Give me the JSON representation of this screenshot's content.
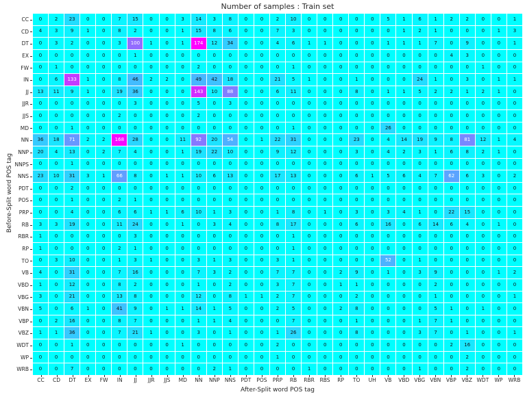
{
  "title": "Number of samples : Train set",
  "colors": {
    "cmap_low": "#00ffff",
    "cmap_high": "#ff00ff",
    "annot_dark": "#111111",
    "annot_light": "#ffffff",
    "background": "#ffffff",
    "tick_text": "#262626"
  },
  "chart_data": {
    "type": "heatmap",
    "title": "Number of samples : Train set",
    "xlabel": "After-Split word POS tag",
    "ylabel": "Before-Split word POS tag",
    "colormap": "cool",
    "vmin": 0,
    "vmax": 174,
    "grid": false,
    "legend": "none",
    "x_categories": [
      "CC",
      "CD",
      "DT",
      "EX",
      "FW",
      "IN",
      "JJ",
      "JJR",
      "JJS",
      "MD",
      "NN",
      "NNP",
      "NNS",
      "PDT",
      "POS",
      "PRP",
      "RB",
      "RBR",
      "RBS",
      "RP",
      "TO",
      "UH",
      "VB",
      "VBD",
      "VBG",
      "VBN",
      "VBP",
      "VBZ",
      "WDT",
      "WP",
      "WRB"
    ],
    "y_categories": [
      "CC",
      "CD",
      "DT",
      "EX",
      "FW",
      "IN",
      "JJ",
      "JJR",
      "JJS",
      "MD",
      "NN",
      "NNP",
      "NNPS",
      "NNS",
      "PDT",
      "POS",
      "PRP",
      "RB",
      "RBR",
      "RP",
      "TO",
      "VB",
      "VBD",
      "VBG",
      "VBN",
      "VBP",
      "VBZ",
      "WDT",
      "WP",
      "WRB"
    ],
    "values": [
      [
        0,
        2,
        23,
        0,
        0,
        7,
        15,
        0,
        0,
        3,
        14,
        3,
        8,
        0,
        0,
        2,
        10,
        0,
        0,
        0,
        0,
        0,
        5,
        1,
        6,
        1,
        2,
        2,
        0,
        0,
        1
      ],
      [
        4,
        3,
        9,
        1,
        0,
        8,
        2,
        0,
        0,
        1,
        15,
        8,
        6,
        0,
        0,
        7,
        3,
        0,
        0,
        0,
        0,
        0,
        0,
        1,
        2,
        1,
        0,
        0,
        0,
        1,
        3
      ],
      [
        0,
        3,
        2,
        0,
        0,
        3,
        100,
        1,
        0,
        1,
        174,
        12,
        34,
        0,
        0,
        4,
        6,
        1,
        1,
        0,
        0,
        0,
        1,
        1,
        1,
        7,
        0,
        9,
        0,
        0,
        1
      ],
      [
        0,
        0,
        0,
        0,
        0,
        0,
        1,
        0,
        0,
        0,
        0,
        0,
        0,
        0,
        0,
        0,
        0,
        0,
        0,
        0,
        0,
        0,
        0,
        0,
        0,
        0,
        4,
        3,
        0,
        0,
        0
      ],
      [
        0,
        1,
        0,
        0,
        0,
        0,
        0,
        0,
        0,
        0,
        2,
        0,
        0,
        0,
        0,
        0,
        1,
        0,
        0,
        0,
        0,
        0,
        0,
        0,
        0,
        0,
        0,
        0,
        1,
        0,
        0
      ],
      [
        0,
        6,
        133,
        1,
        0,
        8,
        46,
        2,
        2,
        0,
        49,
        42,
        18,
        0,
        0,
        21,
        5,
        1,
        0,
        0,
        1,
        0,
        0,
        0,
        24,
        1,
        0,
        3,
        0,
        1,
        1
      ],
      [
        13,
        11,
        9,
        1,
        0,
        19,
        36,
        0,
        0,
        0,
        143,
        10,
        88,
        0,
        0,
        6,
        11,
        0,
        0,
        0,
        8,
        0,
        1,
        1,
        5,
        2,
        2,
        1,
        2,
        1,
        0
      ],
      [
        0,
        0,
        0,
        0,
        0,
        0,
        3,
        0,
        0,
        0,
        5,
        0,
        3,
        0,
        0,
        0,
        0,
        0,
        0,
        0,
        0,
        0,
        0,
        0,
        0,
        0,
        0,
        0,
        0,
        0,
        0
      ],
      [
        0,
        0,
        0,
        0,
        0,
        2,
        0,
        0,
        0,
        0,
        2,
        0,
        0,
        0,
        0,
        0,
        0,
        0,
        0,
        0,
        0,
        0,
        0,
        0,
        0,
        0,
        0,
        0,
        0,
        0,
        0
      ],
      [
        0,
        0,
        1,
        0,
        0,
        0,
        0,
        0,
        0,
        0,
        0,
        0,
        0,
        0,
        0,
        0,
        1,
        0,
        0,
        0,
        0,
        0,
        26,
        0,
        0,
        0,
        0,
        0,
        0,
        0,
        0
      ],
      [
        36,
        18,
        71,
        2,
        2,
        168,
        28,
        0,
        0,
        11,
        92,
        20,
        54,
        0,
        1,
        22,
        31,
        0,
        0,
        0,
        23,
        0,
        4,
        14,
        19,
        9,
        8,
        81,
        12,
        1,
        4
      ],
      [
        20,
        4,
        13,
        0,
        2,
        7,
        4,
        0,
        0,
        1,
        19,
        22,
        10,
        0,
        0,
        9,
        12,
        0,
        0,
        0,
        3,
        0,
        4,
        2,
        3,
        1,
        6,
        8,
        2,
        1,
        0
      ],
      [
        0,
        0,
        1,
        0,
        0,
        0,
        0,
        0,
        0,
        0,
        0,
        0,
        0,
        0,
        0,
        0,
        0,
        0,
        0,
        0,
        0,
        0,
        0,
        0,
        0,
        0,
        0,
        0,
        0,
        0,
        0
      ],
      [
        23,
        10,
        31,
        3,
        1,
        66,
        8,
        0,
        1,
        1,
        10,
        6,
        13,
        0,
        0,
        17,
        13,
        0,
        0,
        0,
        6,
        1,
        5,
        6,
        4,
        7,
        62,
        6,
        3,
        0,
        2
      ],
      [
        0,
        0,
        2,
        0,
        0,
        0,
        0,
        0,
        0,
        0,
        0,
        0,
        0,
        0,
        0,
        0,
        0,
        0,
        0,
        0,
        0,
        0,
        0,
        0,
        0,
        0,
        0,
        0,
        0,
        0,
        0
      ],
      [
        0,
        0,
        1,
        0,
        0,
        2,
        1,
        0,
        0,
        0,
        0,
        0,
        0,
        0,
        0,
        0,
        0,
        0,
        0,
        0,
        0,
        0,
        0,
        0,
        0,
        0,
        0,
        0,
        0,
        0,
        0
      ],
      [
        0,
        0,
        4,
        0,
        0,
        6,
        6,
        1,
        1,
        6,
        10,
        1,
        3,
        0,
        0,
        1,
        8,
        0,
        1,
        0,
        3,
        0,
        3,
        4,
        1,
        0,
        22,
        15,
        0,
        0,
        0
      ],
      [
        3,
        3,
        19,
        0,
        0,
        11,
        24,
        0,
        0,
        1,
        0,
        3,
        4,
        0,
        0,
        8,
        17,
        0,
        0,
        0,
        6,
        0,
        16,
        0,
        6,
        14,
        6,
        4,
        0,
        1,
        0
      ],
      [
        1,
        0,
        0,
        0,
        0,
        0,
        3,
        0,
        0,
        0,
        0,
        0,
        0,
        0,
        0,
        0,
        1,
        0,
        0,
        0,
        0,
        0,
        0,
        0,
        0,
        0,
        0,
        0,
        0,
        0,
        0
      ],
      [
        1,
        0,
        0,
        0,
        0,
        2,
        1,
        0,
        0,
        0,
        0,
        0,
        0,
        0,
        0,
        0,
        1,
        0,
        0,
        0,
        0,
        0,
        0,
        0,
        0,
        0,
        0,
        0,
        0,
        0,
        0
      ],
      [
        0,
        3,
        10,
        0,
        0,
        1,
        3,
        1,
        0,
        0,
        3,
        1,
        3,
        0,
        0,
        3,
        1,
        0,
        0,
        0,
        0,
        0,
        52,
        0,
        1,
        0,
        0,
        0,
        0,
        0,
        0
      ],
      [
        4,
        0,
        31,
        0,
        0,
        7,
        16,
        0,
        0,
        0,
        7,
        3,
        2,
        0,
        0,
        7,
        7,
        0,
        0,
        2,
        9,
        0,
        1,
        0,
        3,
        9,
        0,
        0,
        0,
        1,
        2
      ],
      [
        1,
        0,
        12,
        0,
        0,
        8,
        2,
        0,
        0,
        0,
        1,
        0,
        2,
        0,
        0,
        3,
        7,
        0,
        0,
        1,
        1,
        0,
        0,
        0,
        0,
        2,
        0,
        0,
        0,
        0,
        0
      ],
      [
        3,
        0,
        21,
        0,
        0,
        13,
        8,
        0,
        0,
        0,
        12,
        0,
        8,
        1,
        1,
        2,
        7,
        0,
        0,
        0,
        2,
        0,
        0,
        0,
        0,
        1,
        0,
        0,
        0,
        0,
        1
      ],
      [
        5,
        0,
        6,
        1,
        0,
        41,
        9,
        0,
        1,
        1,
        14,
        1,
        5,
        0,
        0,
        2,
        5,
        0,
        0,
        2,
        8,
        0,
        0,
        0,
        0,
        5,
        1,
        0,
        1,
        0,
        0
      ],
      [
        0,
        2,
        16,
        0,
        0,
        8,
        7,
        0,
        0,
        0,
        1,
        1,
        4,
        0,
        0,
        0,
        7,
        0,
        0,
        0,
        1,
        0,
        0,
        0,
        1,
        7,
        1,
        0,
        0,
        0,
        0
      ],
      [
        1,
        1,
        36,
        0,
        0,
        7,
        21,
        1,
        0,
        0,
        3,
        0,
        1,
        0,
        0,
        1,
        26,
        0,
        0,
        0,
        8,
        0,
        0,
        0,
        3,
        7,
        0,
        1,
        0,
        0,
        1
      ],
      [
        0,
        0,
        1,
        0,
        0,
        0,
        0,
        0,
        0,
        1,
        0,
        0,
        0,
        0,
        0,
        2,
        0,
        0,
        0,
        0,
        0,
        0,
        0,
        0,
        0,
        0,
        2,
        16,
        0,
        0,
        0
      ],
      [
        0,
        0,
        0,
        0,
        0,
        0,
        0,
        0,
        0,
        0,
        0,
        0,
        0,
        0,
        0,
        1,
        0,
        0,
        0,
        0,
        0,
        0,
        0,
        0,
        0,
        0,
        0,
        2,
        0,
        0,
        0
      ],
      [
        0,
        0,
        7,
        0,
        0,
        0,
        0,
        0,
        0,
        0,
        0,
        2,
        1,
        0,
        0,
        0,
        0,
        1,
        0,
        0,
        0,
        0,
        0,
        0,
        1,
        0,
        0,
        2,
        0,
        0,
        0
      ]
    ]
  }
}
